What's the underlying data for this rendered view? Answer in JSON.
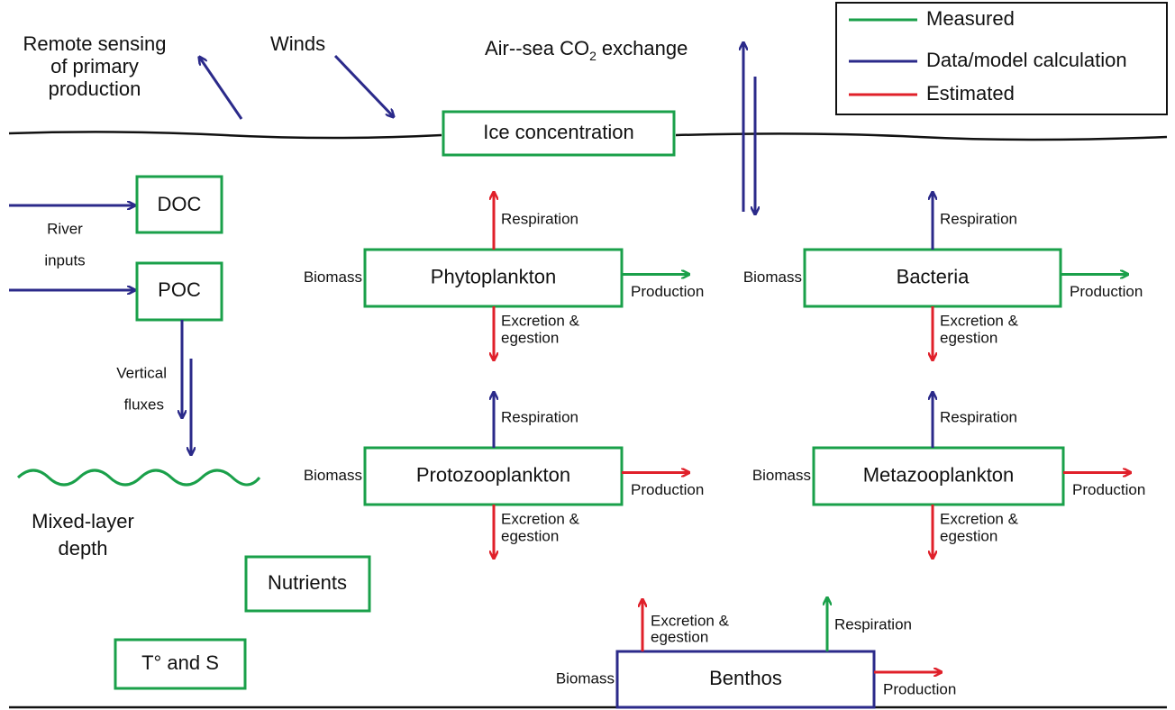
{
  "legend": [
    "Measured",
    "Data/model calculation",
    "Estimated"
  ],
  "surface": {
    "remote_sensing": [
      "Remote sensing",
      "of primary",
      "production"
    ],
    "winds": "Winds",
    "air_sea": {
      "prefix": "Air--sea CO",
      "subscript": "2",
      "suffix": "exchange"
    },
    "ice": "Ice concentration"
  },
  "inputs": {
    "doc": "DOC",
    "poc": "POC",
    "river": [
      "River",
      "inputs"
    ],
    "vertical": [
      "Vertical",
      "fluxes"
    ],
    "mixed_layer": [
      "Mixed-layer",
      "depth"
    ],
    "nutrients": "Nutrients",
    "ts": "T° and S"
  },
  "compartments": [
    {
      "name": "Phytoplankton",
      "biomass": "Biomass",
      "respiration": "Respiration",
      "excretion": [
        "Excretion &",
        "egestion"
      ],
      "production": "Production"
    },
    {
      "name": "Bacteria",
      "biomass": "Biomass",
      "respiration": "Respiration",
      "excretion": [
        "Excretion &",
        "egestion"
      ],
      "production": "Production"
    },
    {
      "name": "Protozooplankton",
      "biomass": "Biomass",
      "respiration": "Respiration",
      "excretion": [
        "Excretion &",
        "egestion"
      ],
      "production": "Production"
    },
    {
      "name": "Metazooplankton",
      "biomass": "Biomass",
      "respiration": "Respiration",
      "excretion": [
        "Excretion &",
        "egestion"
      ],
      "production": "Production"
    },
    {
      "name": "Benthos",
      "biomass": "Biomass",
      "respiration": "Respiration",
      "excretion": [
        "Excretion &",
        "egestion"
      ],
      "production": "Production"
    }
  ]
}
